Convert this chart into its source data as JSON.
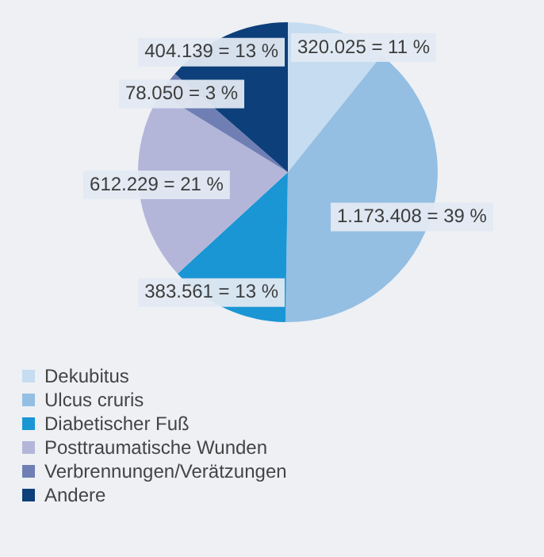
{
  "chart_data": {
    "type": "pie",
    "categories": [
      "Dekubitus",
      "Ulcus cruris",
      "Diabetischer Fuß",
      "Posttraumatische Wunden",
      "Verbrennungen/Verätzungen",
      "Andere"
    ],
    "values": [
      320025,
      1173408,
      383561,
      612229,
      78050,
      404139
    ],
    "value_labels": [
      "320.025 = 11 %",
      "1.173.408 = 39 %",
      "383.561 = 13 %",
      "612.229 = 21 %",
      "78.050 = 3 %",
      "404.139 = 13 %"
    ],
    "colors": [
      "#c6dcf0",
      "#94bfe3",
      "#1a96d4",
      "#b3b6d8",
      "#6f7fb4",
      "#0d3f7a"
    ],
    "legend": "bottom left"
  }
}
